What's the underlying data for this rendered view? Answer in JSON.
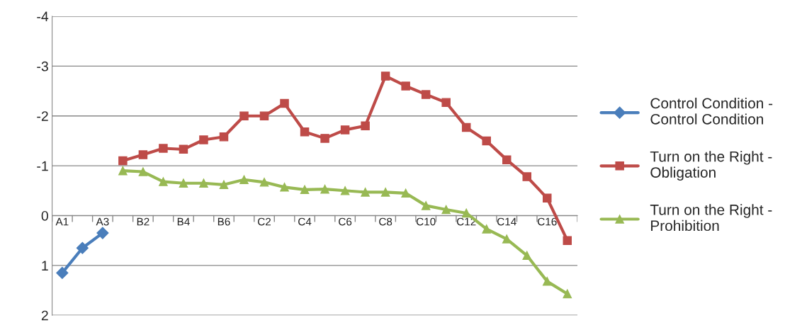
{
  "chart_data": {
    "type": "line",
    "categories": [
      "A1",
      null,
      "A3",
      null,
      "B2",
      null,
      "B4",
      null,
      "B6",
      null,
      "C2",
      null,
      "C4",
      null,
      "C6",
      null,
      "C8",
      null,
      "C10",
      null,
      "C12",
      null,
      "C14",
      null,
      "C16",
      null
    ],
    "series": [
      {
        "name": "Control Condition - Control Condition",
        "color": "#4a7ebb",
        "marker": "diamond",
        "values": [
          1.15,
          0.65,
          0.35,
          null,
          null,
          null,
          null,
          null,
          null,
          null,
          null,
          null,
          null,
          null,
          null,
          null,
          null,
          null,
          null,
          null,
          null,
          null,
          null,
          null,
          null,
          null
        ]
      },
      {
        "name": "Turn on the Right - Obligation",
        "color": "#be4b48",
        "marker": "square",
        "values": [
          null,
          null,
          null,
          -1.1,
          -1.22,
          -1.35,
          -1.33,
          -1.52,
          -1.58,
          -2.0,
          -2.0,
          -2.25,
          -1.68,
          -1.55,
          -1.72,
          -1.8,
          -2.8,
          -2.6,
          -2.43,
          -2.27,
          -1.77,
          -1.5,
          -1.12,
          -0.78,
          -0.35,
          0.5
        ]
      },
      {
        "name": "Turn on the Right - Prohibition",
        "color": "#98b954",
        "marker": "triangle",
        "values": [
          null,
          null,
          null,
          -0.9,
          -0.88,
          -0.68,
          -0.65,
          -0.65,
          -0.62,
          -0.72,
          -0.67,
          -0.57,
          -0.52,
          -0.53,
          -0.5,
          -0.47,
          -0.47,
          -0.45,
          -0.2,
          -0.12,
          -0.05,
          0.27,
          0.47,
          0.8,
          1.32,
          1.57
        ]
      }
    ],
    "ylim": [
      2,
      -4
    ],
    "yticks": [
      {
        "value": 2,
        "label": "2"
      },
      {
        "value": 1,
        "label": "1"
      },
      {
        "value": 0,
        "label": "0"
      },
      {
        "value": -1,
        "label": "-1"
      },
      {
        "value": -2,
        "label": "-2"
      },
      {
        "value": -3,
        "label": "-3"
      },
      {
        "value": -4,
        "label": "-4"
      }
    ],
    "grid": "y",
    "legend": "right",
    "line_style": "solid"
  }
}
